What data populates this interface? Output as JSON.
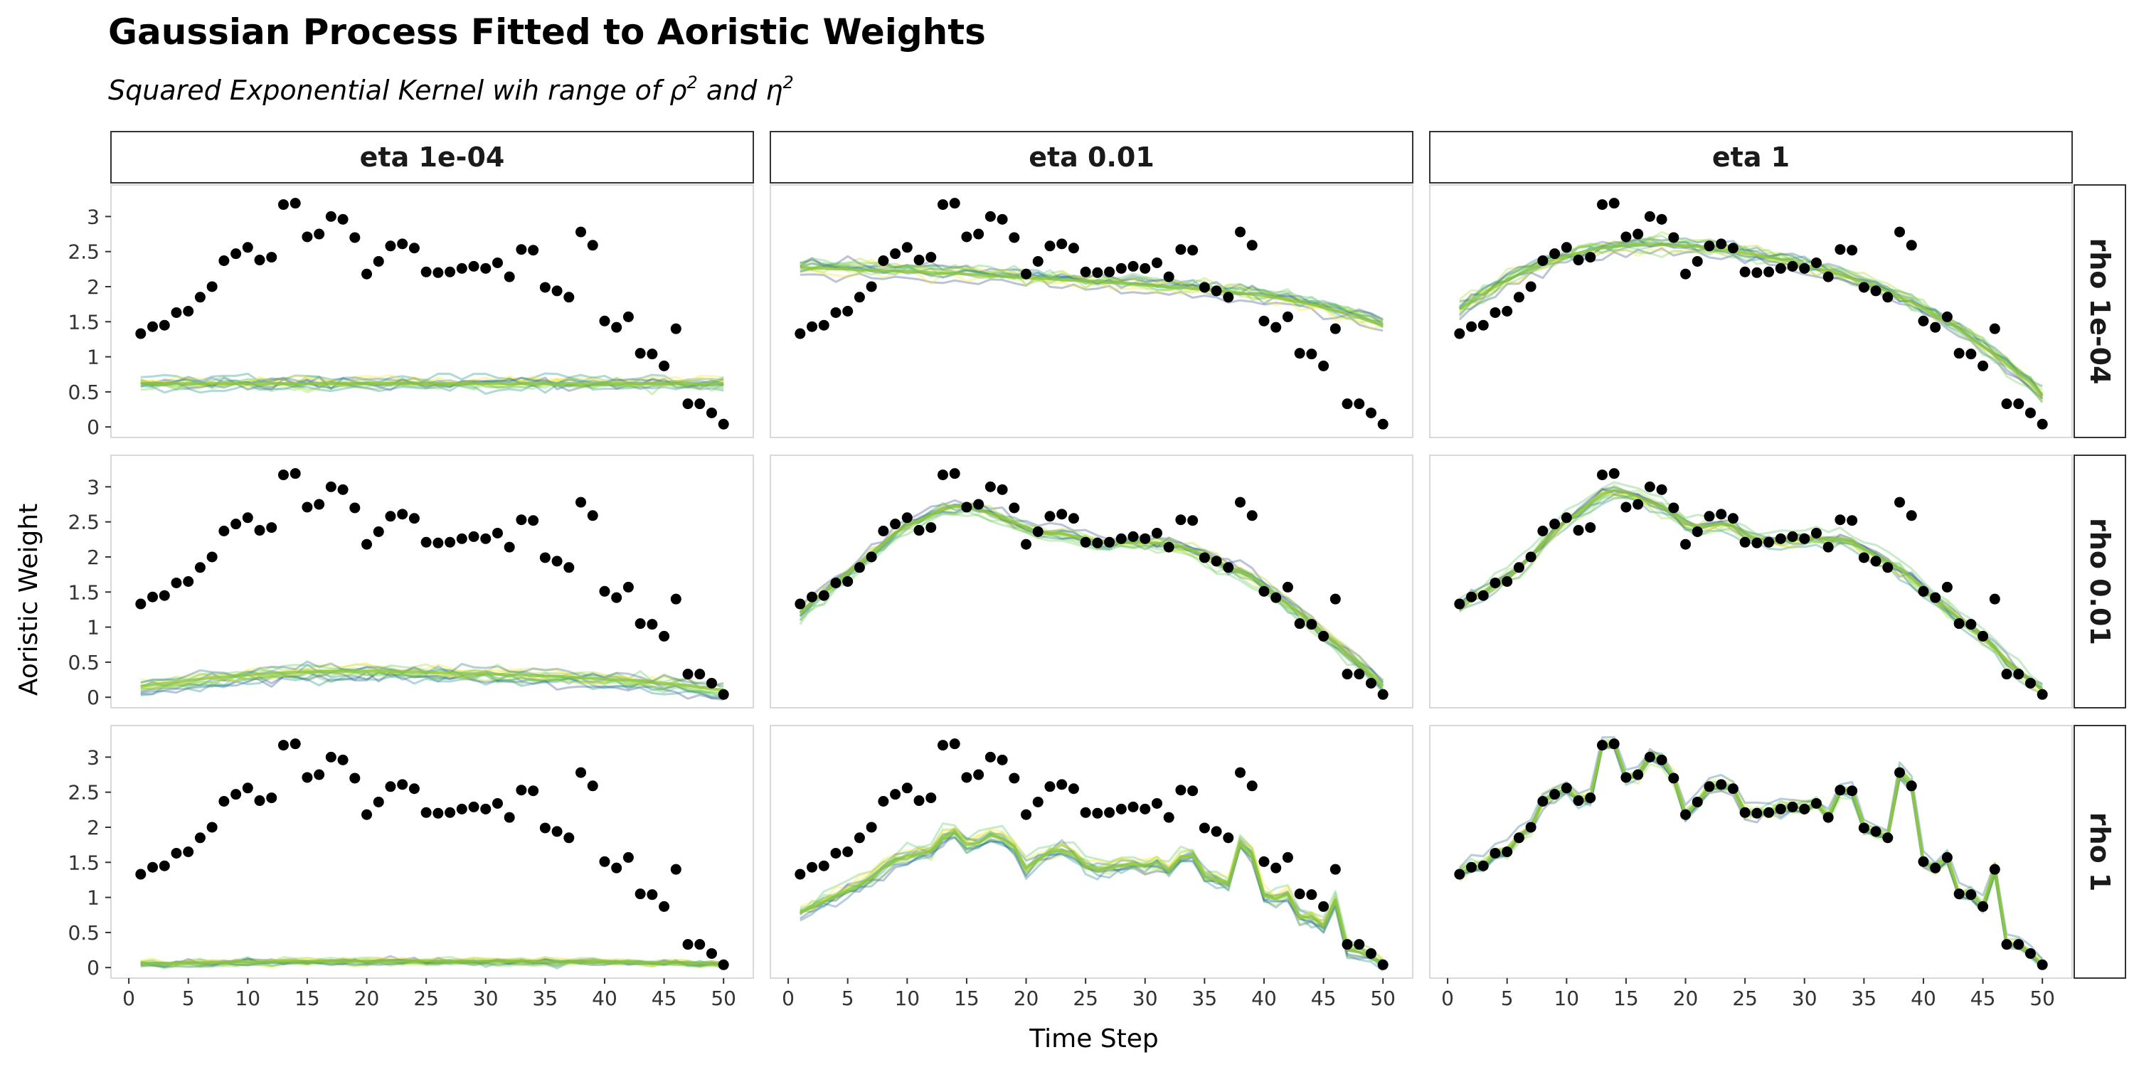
{
  "title": "Gaussian Process Fitted to Aoristic Weights",
  "subtitle_main": "Squared Exponential Kernel wih range of ",
  "subtitle_rho": "ρ",
  "subtitle_and": " and ",
  "subtitle_eta": "η",
  "subtitle_sup": "2",
  "colors": {
    "points": "#000000",
    "panel_border": "#d9d9d9",
    "strip_border": "#333333",
    "draw_palette": [
      "#3b528b",
      "#21908d",
      "#5dc963",
      "#addc30",
      "#fde725",
      "#2c728e",
      "#7ad151"
    ]
  },
  "chart_data": {
    "type": "scatter",
    "facet_columns": [
      "eta 1e-04",
      "eta 0.01",
      "eta 1"
    ],
    "facet_rows": [
      "rho 1e-04",
      "rho 0.01",
      "rho 1"
    ],
    "xlabel": "Time Step",
    "ylabel": "Aoristic Weight",
    "xlim": [
      -1.5,
      52.5
    ],
    "ylim": [
      -0.15,
      3.45
    ],
    "x_ticks": [
      0,
      5,
      10,
      15,
      20,
      25,
      30,
      35,
      40,
      45,
      50
    ],
    "x_tick_labels": [
      "0",
      "5",
      "10",
      "15",
      "20",
      "25",
      "30",
      "35",
      "40",
      "45",
      "50"
    ],
    "y_ticks": [
      0,
      0.5,
      1,
      1.5,
      2,
      2.5,
      3
    ],
    "y_tick_labels": [
      "0",
      "0.5",
      "1",
      "1.5",
      "2",
      "2.5",
      "3"
    ],
    "observed": {
      "x": [
        1,
        2,
        3,
        4,
        5,
        6,
        7,
        8,
        9,
        10,
        11,
        12,
        13,
        14,
        15,
        16,
        17,
        18,
        19,
        20,
        21,
        22,
        23,
        24,
        25,
        26,
        27,
        28,
        29,
        30,
        31,
        32,
        33,
        34,
        35,
        36,
        37,
        38,
        39,
        40,
        41,
        42,
        43,
        44,
        45,
        46,
        47,
        48,
        49,
        50
      ],
      "y": [
        1.33,
        1.43,
        1.45,
        1.63,
        1.65,
        1.85,
        2.0,
        2.37,
        2.47,
        2.56,
        2.38,
        2.42,
        3.17,
        3.19,
        2.71,
        2.75,
        3.0,
        2.96,
        2.7,
        2.18,
        2.36,
        2.58,
        2.61,
        2.55,
        2.21,
        2.2,
        2.21,
        2.26,
        2.29,
        2.26,
        2.34,
        2.14,
        2.53,
        2.52,
        1.99,
        1.94,
        1.85,
        2.78,
        2.59,
        1.51,
        1.42,
        1.57,
        1.05,
        1.04,
        0.87,
        1.4,
        0.33,
        0.33,
        0.2,
        0.04
      ]
    },
    "fitted_mean": {
      "rho 1e-04|eta 1e-04": [
        0.62,
        0.62,
        0.62,
        0.62,
        0.62,
        0.62,
        0.62,
        0.62,
        0.62,
        0.62,
        0.62,
        0.62,
        0.62,
        0.62,
        0.62,
        0.62,
        0.62,
        0.62,
        0.62,
        0.62,
        0.62,
        0.62,
        0.62,
        0.62,
        0.62,
        0.62,
        0.62,
        0.62,
        0.62,
        0.62,
        0.62,
        0.62,
        0.62,
        0.62,
        0.62,
        0.62,
        0.62,
        0.62,
        0.62,
        0.62,
        0.62,
        0.62,
        0.62,
        0.62,
        0.62,
        0.62,
        0.62,
        0.62,
        0.62,
        0.62
      ],
      "rho 1e-04|eta 0.01": [
        2.27,
        2.26,
        2.26,
        2.25,
        2.25,
        2.24,
        2.24,
        2.23,
        2.22,
        2.22,
        2.21,
        2.2,
        2.19,
        2.19,
        2.18,
        2.17,
        2.16,
        2.15,
        2.14,
        2.13,
        2.12,
        2.11,
        2.1,
        2.09,
        2.08,
        2.07,
        2.06,
        2.05,
        2.04,
        2.02,
        2.01,
        2.0,
        1.99,
        1.97,
        1.96,
        1.94,
        1.93,
        1.91,
        1.89,
        1.87,
        1.84,
        1.81,
        1.78,
        1.75,
        1.7,
        1.66,
        1.61,
        1.56,
        1.5,
        1.45
      ],
      "rho 1e-04|eta 1": [
        1.68,
        1.79,
        1.9,
        2.0,
        2.09,
        2.18,
        2.26,
        2.32,
        2.39,
        2.44,
        2.48,
        2.52,
        2.55,
        2.57,
        2.59,
        2.6,
        2.6,
        2.6,
        2.59,
        2.58,
        2.57,
        2.55,
        2.53,
        2.5,
        2.48,
        2.45,
        2.42,
        2.39,
        2.35,
        2.31,
        2.27,
        2.22,
        2.17,
        2.12,
        2.06,
        2.0,
        1.93,
        1.85,
        1.78,
        1.69,
        1.6,
        1.5,
        1.39,
        1.27,
        1.15,
        1.03,
        0.9,
        0.76,
        0.63,
        0.45
      ],
      "rho 0.01|eta 1e-04": [
        0.16,
        0.18,
        0.2,
        0.22,
        0.24,
        0.26,
        0.28,
        0.29,
        0.31,
        0.32,
        0.33,
        0.34,
        0.35,
        0.36,
        0.36,
        0.37,
        0.37,
        0.37,
        0.37,
        0.37,
        0.37,
        0.37,
        0.36,
        0.36,
        0.36,
        0.35,
        0.35,
        0.34,
        0.34,
        0.33,
        0.33,
        0.32,
        0.32,
        0.31,
        0.3,
        0.3,
        0.29,
        0.28,
        0.27,
        0.26,
        0.25,
        0.24,
        0.23,
        0.21,
        0.2,
        0.18,
        0.17,
        0.14,
        0.12,
        0.1
      ],
      "rho 0.01|eta 0.01": [
        1.2,
        1.35,
        1.5,
        1.63,
        1.76,
        1.9,
        2.05,
        2.2,
        2.34,
        2.45,
        2.52,
        2.6,
        2.68,
        2.72,
        2.72,
        2.69,
        2.62,
        2.56,
        2.5,
        2.42,
        2.36,
        2.34,
        2.33,
        2.3,
        2.25,
        2.2,
        2.19,
        2.2,
        2.21,
        2.21,
        2.2,
        2.18,
        2.15,
        2.1,
        2.02,
        1.95,
        1.86,
        1.8,
        1.72,
        1.6,
        1.46,
        1.33,
        1.2,
        1.06,
        0.92,
        0.78,
        0.62,
        0.48,
        0.33,
        0.17
      ],
      "rho 0.01|eta 1": [
        1.3,
        1.43,
        1.5,
        1.62,
        1.72,
        1.85,
        2.01,
        2.2,
        2.38,
        2.52,
        2.63,
        2.77,
        2.9,
        2.95,
        2.92,
        2.86,
        2.78,
        2.72,
        2.63,
        2.48,
        2.42,
        2.45,
        2.48,
        2.44,
        2.33,
        2.26,
        2.24,
        2.24,
        2.25,
        2.26,
        2.27,
        2.25,
        2.26,
        2.23,
        2.12,
        2.02,
        1.93,
        1.83,
        1.7,
        1.55,
        1.4,
        1.27,
        1.12,
        1.02,
        0.86,
        0.7,
        0.52,
        0.37,
        0.24,
        0.1
      ],
      "rho 1|eta 1e-04": [
        0.06,
        0.06,
        0.06,
        0.06,
        0.07,
        0.07,
        0.07,
        0.07,
        0.08,
        0.08,
        0.08,
        0.08,
        0.09,
        0.09,
        0.09,
        0.09,
        0.09,
        0.09,
        0.09,
        0.09,
        0.09,
        0.09,
        0.09,
        0.09,
        0.09,
        0.09,
        0.09,
        0.09,
        0.09,
        0.09,
        0.09,
        0.09,
        0.09,
        0.09,
        0.09,
        0.08,
        0.08,
        0.09,
        0.09,
        0.08,
        0.08,
        0.08,
        0.07,
        0.07,
        0.07,
        0.08,
        0.06,
        0.06,
        0.06,
        0.05
      ],
      "rho 1|eta 0.01": [
        0.78,
        0.86,
        0.94,
        1.02,
        1.1,
        1.18,
        1.28,
        1.42,
        1.52,
        1.6,
        1.62,
        1.66,
        1.84,
        1.92,
        1.75,
        1.78,
        1.88,
        1.85,
        1.72,
        1.42,
        1.55,
        1.64,
        1.68,
        1.62,
        1.45,
        1.4,
        1.42,
        1.45,
        1.48,
        1.45,
        1.5,
        1.38,
        1.58,
        1.6,
        1.3,
        1.25,
        1.18,
        1.78,
        1.6,
        1.02,
        0.98,
        1.05,
        0.72,
        0.72,
        0.6,
        0.96,
        0.25,
        0.22,
        0.15,
        0.04
      ],
      "rho 1|eta 1": [
        1.33,
        1.43,
        1.45,
        1.63,
        1.65,
        1.85,
        2.0,
        2.37,
        2.47,
        2.56,
        2.38,
        2.42,
        3.17,
        3.19,
        2.71,
        2.75,
        3.0,
        2.96,
        2.7,
        2.18,
        2.36,
        2.58,
        2.61,
        2.55,
        2.21,
        2.2,
        2.21,
        2.26,
        2.29,
        2.26,
        2.34,
        2.14,
        2.53,
        2.52,
        1.99,
        1.94,
        1.85,
        2.78,
        2.59,
        1.51,
        1.42,
        1.57,
        1.05,
        1.04,
        0.87,
        1.4,
        0.33,
        0.33,
        0.2,
        0.04
      ]
    },
    "fitted_spread": {
      "rho 1e-04|eta 1e-04": 0.07,
      "rho 1e-04|eta 0.01": 0.08,
      "rho 1e-04|eta 1": 0.08,
      "rho 0.01|eta 1e-04": 0.07,
      "rho 0.01|eta 0.01": 0.07,
      "rho 0.01|eta 1": 0.07,
      "rho 1|eta 1e-04": 0.04,
      "rho 1|eta 0.01": 0.08,
      "rho 1|eta 1": 0.07
    },
    "draws_per_panel": 14,
    "grid": false,
    "legend": "none"
  }
}
